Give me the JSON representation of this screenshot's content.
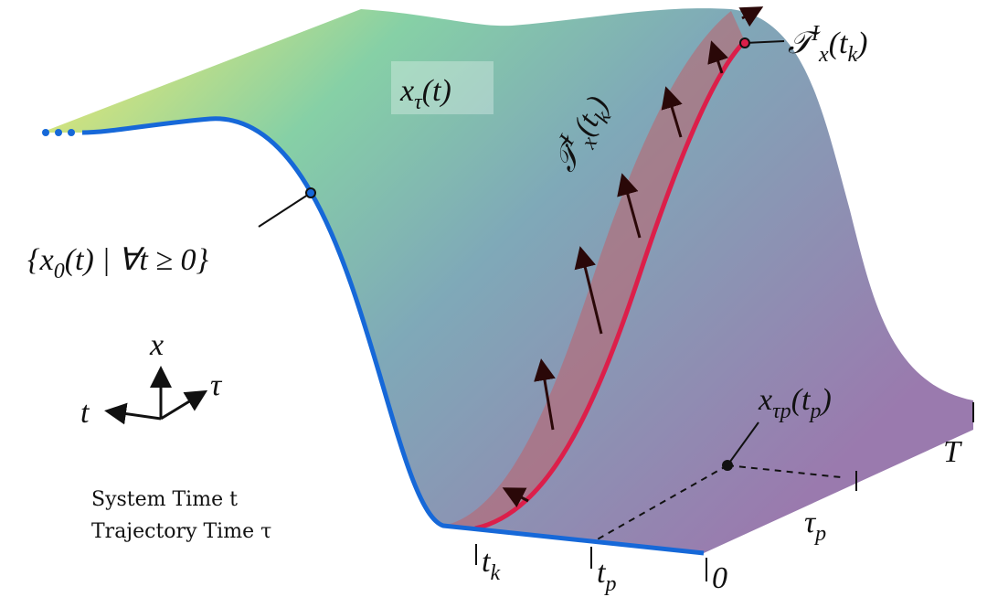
{
  "labels": {
    "surface": [
      {
        "text": "x"
      },
      {
        "sub": "τ"
      },
      {
        "text": "(t)"
      }
    ],
    "initial": [
      {
        "text": "{x"
      },
      {
        "sub": "0"
      },
      {
        "text": "(t)  |  ∀t ≥ 0}"
      }
    ],
    "tangent": [
      {
        "text": "𝒯"
      },
      {
        "sup": "I"
      },
      {
        "sub": "x"
      },
      {
        "text": "(t"
      },
      {
        "sub": "k"
      },
      {
        "text": ")"
      }
    ],
    "tangent_dot": [
      {
        "text": "𝒯̇"
      },
      {
        "sup": "I"
      },
      {
        "sub": "x"
      },
      {
        "text": "(t"
      },
      {
        "sub": "k"
      },
      {
        "text": ")"
      }
    ],
    "point": [
      {
        "text": "x"
      },
      {
        "sub": "τp"
      },
      {
        "text": "(t"
      },
      {
        "sub": "p"
      },
      {
        "text": ")"
      }
    ],
    "axis_x": [
      {
        "text": "x"
      }
    ],
    "axis_t": [
      {
        "text": "t"
      }
    ],
    "axis_tau": [
      {
        "text": "τ"
      }
    ],
    "tick_tk": [
      {
        "text": "t"
      },
      {
        "sub": "k"
      }
    ],
    "tick_tp": [
      {
        "text": "t"
      },
      {
        "sub": "p"
      }
    ],
    "tick_0": [
      {
        "text": "0"
      }
    ],
    "tick_taup": [
      {
        "text": "τ"
      },
      {
        "sub": "p"
      }
    ],
    "tick_T": [
      {
        "text": "T"
      }
    ]
  },
  "legend": [
    "System Time t",
    "Trajectory Time τ"
  ]
}
